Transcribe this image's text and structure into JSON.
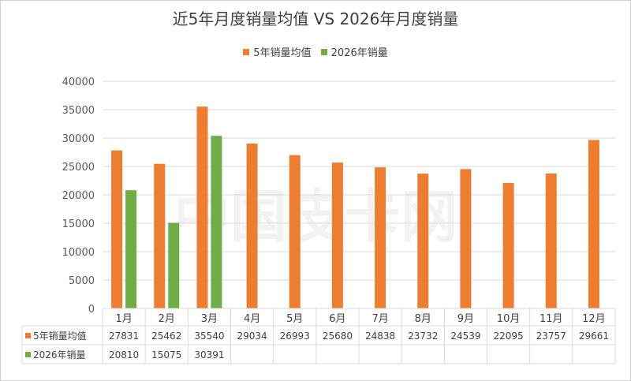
{
  "chart_data": {
    "type": "bar",
    "title": "近5年月度销量均值 VS 2026年月度销量",
    "categories": [
      "1月",
      "2月",
      "3月",
      "4月",
      "5月",
      "6月",
      "7月",
      "8月",
      "9月",
      "10月",
      "11月",
      "12月"
    ],
    "series": [
      {
        "name": "5年销量均值",
        "color": "#ED7D31",
        "values": [
          27831,
          25462,
          35540,
          29034,
          26993,
          25680,
          24838,
          23732,
          24539,
          22095,
          23757,
          29661
        ]
      },
      {
        "name": "2026年销量",
        "color": "#70AD47",
        "values": [
          20810,
          15075,
          30391,
          null,
          null,
          null,
          null,
          null,
          null,
          null,
          null,
          null
        ]
      }
    ],
    "ylim": [
      0,
      40000
    ],
    "yticks": [
      0,
      5000,
      10000,
      15000,
      20000,
      25000,
      30000,
      35000,
      40000
    ],
    "grid": true,
    "legend": "top",
    "data_table": true
  },
  "watermark": "中国皮卡网"
}
